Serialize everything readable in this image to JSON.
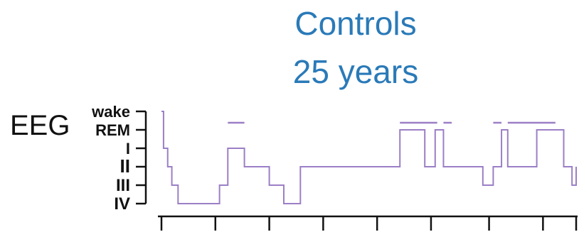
{
  "chart_data": {
    "type": "line",
    "title_lines": [
      "Controls",
      "25 years"
    ],
    "ylabel": "EEG",
    "stages": [
      "wake",
      "REM",
      "I",
      "II",
      "III",
      "IV"
    ],
    "colors": {
      "hypnogram": "#9b7fc6",
      "axis": "#111111",
      "title": "#2a7ab8"
    },
    "xlim": [
      0,
      100
    ],
    "x_ticks": [
      0,
      13,
      26,
      39,
      52,
      65,
      79,
      92,
      100
    ],
    "hypnogram": {
      "x": [
        0,
        0.5,
        1.5,
        2.5,
        4,
        14,
        16,
        20,
        26,
        29.5,
        33.5,
        37.5,
        57.5,
        63.5,
        66,
        68,
        77.5,
        80,
        82,
        83.5,
        90.5,
        97,
        99,
        100
      ],
      "y": [
        0,
        2,
        3,
        4,
        5,
        4,
        2,
        3,
        4,
        5,
        3,
        3,
        1,
        3,
        1,
        3,
        4,
        3,
        1,
        3,
        1,
        3,
        4,
        3
      ]
    },
    "rem_bars": [
      [
        16,
        20
      ],
      [
        57.5,
        66.5
      ],
      [
        68,
        70
      ],
      [
        80,
        82
      ],
      [
        83.5,
        95
      ]
    ]
  }
}
